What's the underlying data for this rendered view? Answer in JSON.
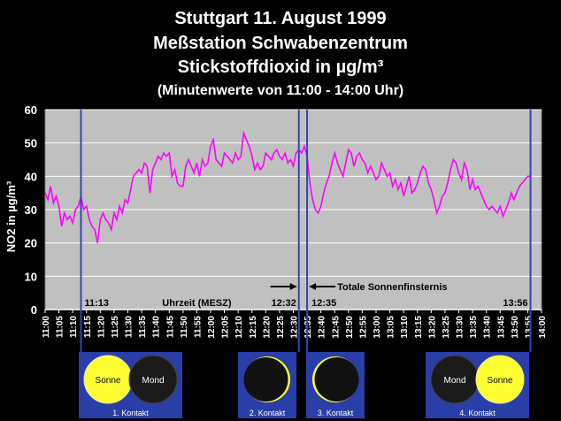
{
  "title": {
    "line1": "Stuttgart 11. August 1999",
    "line2": "Meßstation Schwabenzentrum",
    "line3": "Stickstoffdioxid in µg/m³",
    "line4": "(Minutenwerte von 11:00 - 14:00 Uhr)"
  },
  "colors": {
    "background": "#000000",
    "plot_area": "#c0c0c0",
    "series": "#ff00ff",
    "contact_lines": "#3344bb",
    "panel": "#2a3ea8",
    "sun": "#ffff33"
  },
  "chart_data": {
    "type": "line",
    "ylabel": "NO2 in µg/m³",
    "xlabel": "Uhrzeit (MESZ)",
    "ylim": [
      0,
      60
    ],
    "yticks": [
      0,
      10,
      20,
      30,
      40,
      50,
      60
    ],
    "x_range": [
      "11:00",
      "14:00"
    ],
    "x_tick_labels": [
      "11:00",
      "11:05",
      "11:10",
      "11:15",
      "11:20",
      "11:25",
      "11:30",
      "11:35",
      "11:40",
      "11:45",
      "11:50",
      "11:55",
      "12:00",
      "12:05",
      "12:10",
      "12:15",
      "12:20",
      "12:25",
      "12:30",
      "12:35",
      "12:40",
      "12:45",
      "12:50",
      "12:55",
      "13:00",
      "13:05",
      "13:10",
      "13:15",
      "13:20",
      "13:25",
      "13:30",
      "13:35",
      "13:40",
      "13:45",
      "13:50",
      "13:55",
      "14:00"
    ],
    "grid": true,
    "series": [
      {
        "values": [
          [
            "11:00",
            35
          ],
          [
            "11:01",
            33
          ],
          [
            "11:02",
            37
          ],
          [
            "11:03",
            32
          ],
          [
            "11:04",
            34
          ],
          [
            "11:05",
            31
          ],
          [
            "11:06",
            25
          ],
          [
            "11:07",
            29
          ],
          [
            "11:08",
            27
          ],
          [
            "11:09",
            28
          ],
          [
            "11:10",
            26
          ],
          [
            "11:11",
            30
          ],
          [
            "11:12",
            31
          ],
          [
            "11:13",
            34
          ],
          [
            "11:14",
            30
          ],
          [
            "11:15",
            31
          ],
          [
            "11:16",
            27
          ],
          [
            "11:17",
            25
          ],
          [
            "11:18",
            24
          ],
          [
            "11:19",
            20
          ],
          [
            "11:20",
            27
          ],
          [
            "11:21",
            29
          ],
          [
            "11:22",
            27
          ],
          [
            "11:23",
            26
          ],
          [
            "11:24",
            24
          ],
          [
            "11:25",
            29
          ],
          [
            "11:26",
            27
          ],
          [
            "11:27",
            31
          ],
          [
            "11:28",
            29
          ],
          [
            "11:29",
            33
          ],
          [
            "11:30",
            32
          ],
          [
            "11:31",
            36
          ],
          [
            "11:32",
            40
          ],
          [
            "11:33",
            41
          ],
          [
            "11:34",
            42
          ],
          [
            "11:35",
            41
          ],
          [
            "11:36",
            44
          ],
          [
            "11:37",
            43
          ],
          [
            "11:38",
            35
          ],
          [
            "11:39",
            42
          ],
          [
            "11:40",
            44
          ],
          [
            "11:41",
            46
          ],
          [
            "11:42",
            45
          ],
          [
            "11:43",
            47
          ],
          [
            "11:44",
            46
          ],
          [
            "11:45",
            47
          ],
          [
            "11:46",
            40
          ],
          [
            "11:47",
            42
          ],
          [
            "11:48",
            38
          ],
          [
            "11:49",
            37
          ],
          [
            "11:50",
            37
          ],
          [
            "11:51",
            43
          ],
          [
            "11:52",
            45
          ],
          [
            "11:53",
            43
          ],
          [
            "11:54",
            41
          ],
          [
            "11:55",
            44
          ],
          [
            "11:56",
            40
          ],
          [
            "11:57",
            45
          ],
          [
            "11:58",
            43
          ],
          [
            "11:59",
            44
          ],
          [
            "12:00",
            49
          ],
          [
            "12:01",
            51
          ],
          [
            "12:02",
            45
          ],
          [
            "12:03",
            44
          ],
          [
            "12:04",
            43
          ],
          [
            "12:05",
            47
          ],
          [
            "12:06",
            46
          ],
          [
            "12:07",
            45
          ],
          [
            "12:08",
            44
          ],
          [
            "12:09",
            47
          ],
          [
            "12:10",
            45
          ],
          [
            "12:11",
            46
          ],
          [
            "12:12",
            53
          ],
          [
            "12:13",
            51
          ],
          [
            "12:14",
            49
          ],
          [
            "12:15",
            46
          ],
          [
            "12:16",
            42
          ],
          [
            "12:17",
            44
          ],
          [
            "12:18",
            42
          ],
          [
            "12:19",
            43
          ],
          [
            "12:20",
            47
          ],
          [
            "12:21",
            46
          ],
          [
            "12:22",
            45
          ],
          [
            "12:23",
            47
          ],
          [
            "12:24",
            48
          ],
          [
            "12:25",
            46
          ],
          [
            "12:26",
            45
          ],
          [
            "12:27",
            47
          ],
          [
            "12:28",
            44
          ],
          [
            "12:29",
            45
          ],
          [
            "12:30",
            43
          ],
          [
            "12:31",
            47
          ],
          [
            "12:32",
            48
          ],
          [
            "12:33",
            47
          ],
          [
            "12:34",
            49
          ],
          [
            "12:35",
            46
          ],
          [
            "12:36",
            38
          ],
          [
            "12:37",
            33
          ],
          [
            "12:38",
            30
          ],
          [
            "12:39",
            29
          ],
          [
            "12:40",
            31
          ],
          [
            "12:41",
            35
          ],
          [
            "12:42",
            38
          ],
          [
            "12:43",
            40
          ],
          [
            "12:44",
            44
          ],
          [
            "12:45",
            47
          ],
          [
            "12:46",
            44
          ],
          [
            "12:47",
            42
          ],
          [
            "12:48",
            40
          ],
          [
            "12:49",
            44
          ],
          [
            "12:50",
            48
          ],
          [
            "12:51",
            47
          ],
          [
            "12:52",
            43
          ],
          [
            "12:53",
            46
          ],
          [
            "12:54",
            47
          ],
          [
            "12:55",
            45
          ],
          [
            "12:56",
            44
          ],
          [
            "12:57",
            41
          ],
          [
            "12:58",
            43
          ],
          [
            "12:59",
            41
          ],
          [
            "13:00",
            39
          ],
          [
            "13:01",
            40
          ],
          [
            "13:02",
            44
          ],
          [
            "13:03",
            42
          ],
          [
            "13:04",
            40
          ],
          [
            "13:05",
            41
          ],
          [
            "13:06",
            37
          ],
          [
            "13:07",
            39
          ],
          [
            "13:08",
            36
          ],
          [
            "13:09",
            38
          ],
          [
            "13:10",
            34
          ],
          [
            "13:11",
            37
          ],
          [
            "13:12",
            40
          ],
          [
            "13:13",
            35
          ],
          [
            "13:14",
            36
          ],
          [
            "13:15",
            38
          ],
          [
            "13:16",
            41
          ],
          [
            "13:17",
            43
          ],
          [
            "13:18",
            42
          ],
          [
            "13:19",
            38
          ],
          [
            "13:20",
            36
          ],
          [
            "13:21",
            33
          ],
          [
            "13:22",
            29
          ],
          [
            "13:23",
            31
          ],
          [
            "13:24",
            34
          ],
          [
            "13:25",
            35
          ],
          [
            "13:26",
            38
          ],
          [
            "13:27",
            42
          ],
          [
            "13:28",
            45
          ],
          [
            "13:29",
            44
          ],
          [
            "13:30",
            41
          ],
          [
            "13:31",
            39
          ],
          [
            "13:32",
            44
          ],
          [
            "13:33",
            42
          ],
          [
            "13:34",
            36
          ],
          [
            "13:35",
            39
          ],
          [
            "13:36",
            36
          ],
          [
            "13:37",
            37
          ],
          [
            "13:38",
            35
          ],
          [
            "13:39",
            33
          ],
          [
            "13:40",
            31
          ],
          [
            "13:41",
            30
          ],
          [
            "13:42",
            31
          ],
          [
            "13:43",
            30
          ],
          [
            "13:44",
            29
          ],
          [
            "13:45",
            31
          ],
          [
            "13:46",
            28
          ],
          [
            "13:47",
            30
          ],
          [
            "13:48",
            32
          ],
          [
            "13:49",
            35
          ],
          [
            "13:50",
            33
          ],
          [
            "13:51",
            35
          ],
          [
            "13:52",
            37
          ],
          [
            "13:53",
            38
          ],
          [
            "13:54",
            39
          ],
          [
            "13:55",
            40
          ],
          [
            "13:56",
            40
          ]
        ]
      }
    ],
    "contact_times": [
      "11:13",
      "12:32",
      "12:35",
      "13:56"
    ],
    "annotations": {
      "totality": "Totale Sonnenfinsternis",
      "totality_arrow_left": "12:32",
      "totality_arrow_right": "12:35"
    }
  },
  "panels": [
    {
      "caption": "1. Kontakt",
      "left_disk": "Sonne",
      "right_disk": "Mond"
    },
    {
      "caption": "2. Kontakt"
    },
    {
      "caption": "3. Kontakt"
    },
    {
      "caption": "4. Kontakt",
      "left_disk": "Mond",
      "right_disk": "Sonne"
    }
  ]
}
